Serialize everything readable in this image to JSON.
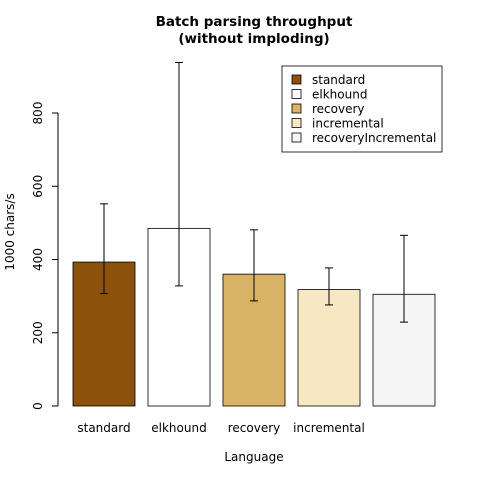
{
  "chart_data": {
    "type": "bar",
    "title": "Batch parsing throughput",
    "subtitle": "(without imploding)",
    "xlabel": "Language",
    "ylabel": "1000 chars/s",
    "ylim": [
      0,
      1000
    ],
    "yticks": [
      0,
      200,
      400,
      600,
      800
    ],
    "categories": [
      "standard",
      "elkhound",
      "recovery",
      "incremental",
      "recoveryIncremental"
    ],
    "category_labels_shown": [
      "standard",
      "elkhound",
      "recovery",
      "incremental",
      ""
    ],
    "values": [
      393,
      485,
      360,
      318,
      305
    ],
    "error_low": [
      307,
      328,
      287,
      276,
      229
    ],
    "error_high": [
      552,
      938,
      481,
      377,
      466
    ],
    "colors": [
      "#8c510a",
      "#ffffff",
      "#d8b365",
      "#f6e8c3",
      "#f5f5f5"
    ],
    "legend": {
      "position": "top-right",
      "entries": [
        "standard",
        "elkhound",
        "recovery",
        "incremental",
        "recoveryIncremental"
      ]
    },
    "grid": false
  }
}
